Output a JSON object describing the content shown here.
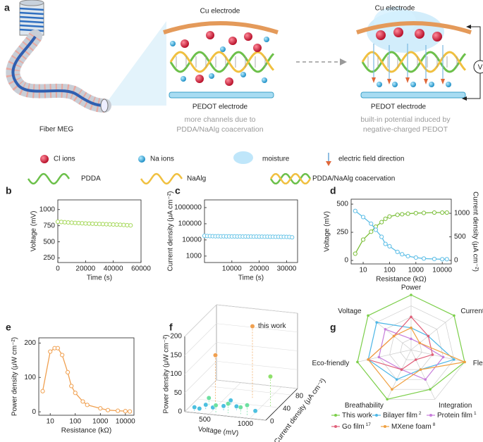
{
  "diagram": {
    "label": "a",
    "fiber": "Fiber MEG",
    "cu_left": "Cu electrode",
    "cu_right": "Cu electrode",
    "pedot_left": "PEDOT electrode",
    "pedot_right": "PEDOT electrode",
    "note_left": [
      "more channels due to",
      "PDDA/NaAlg coacervation"
    ],
    "note_right": [
      "built-in potential induced by",
      "negative-charged PEDOT"
    ],
    "voltmeter": "V",
    "legend": [
      "Cl ions",
      "Na ions",
      "moisture",
      "electric field direction",
      "PDDA",
      "NaAlg",
      "PDDA/NaAlg coacervation"
    ]
  },
  "chart_data": [
    {
      "panel": "b",
      "type": "line",
      "xlabel": "Time (s)",
      "ylabel": "Voltage (mV)",
      "color": "#a6d85a",
      "x": [
        0,
        2500,
        5000,
        7500,
        10000,
        12500,
        15000,
        17500,
        20000,
        22500,
        25000,
        27500,
        30000,
        32500,
        35000,
        37500,
        40000,
        42500,
        45000,
        47500,
        50000,
        52500
      ],
      "values": [
        812,
        808,
        804,
        800,
        797,
        794,
        791,
        788,
        785,
        783,
        781,
        779,
        777,
        775,
        773,
        771,
        769,
        767,
        765,
        762,
        758,
        755
      ],
      "xlim": [
        0,
        60000
      ],
      "xticks": [
        0,
        20000,
        40000,
        60000
      ],
      "ylim": [
        180,
        1150
      ],
      "yticks": [
        250,
        500,
        750,
        1000
      ]
    },
    {
      "panel": "c",
      "type": "line",
      "xlabel": "Time (s)",
      "ylabel": "Current density (μA cm⁻²)",
      "color": "#6cc6e8",
      "ylog": true,
      "x": [
        0,
        1000,
        2000,
        3000,
        4000,
        5000,
        6000,
        7000,
        8000,
        9000,
        10000,
        11000,
        12000,
        13000,
        14000,
        15000,
        16000,
        17000,
        18000,
        19000,
        20000,
        21000,
        22000,
        23000,
        24000,
        25000,
        26000,
        27000,
        28000,
        29000,
        30000,
        31000,
        32000
      ],
      "values": [
        18000,
        17500,
        17200,
        17000,
        16800,
        16900,
        16600,
        16700,
        16500,
        16600,
        16400,
        16500,
        16300,
        16400,
        16200,
        16300,
        16100,
        16200,
        16000,
        16100,
        15900,
        16000,
        15800,
        15900,
        15700,
        15800,
        15600,
        15700,
        15500,
        15600,
        15400,
        15300,
        14500
      ],
      "xlim": [
        0,
        34000
      ],
      "xticks": [
        10000,
        20000,
        30000
      ],
      "ylim": [
        400,
        3000000
      ],
      "yticks": [
        1000,
        10000,
        100000,
        1000000
      ]
    },
    {
      "panel": "d",
      "type": "line",
      "xlabel": "Resistance (kΩ)",
      "ylabel": "Voltage (mV)",
      "y2label": "Current density (μA cm⁻²)",
      "xlog": true,
      "x": [
        5,
        10,
        20,
        30,
        50,
        70,
        100,
        200,
        300,
        500,
        1000,
        2000,
        5000,
        10000,
        15000
      ],
      "series": [
        {
          "color": "#7cbf3a",
          "values": [
            60,
            185,
            255,
            300,
            340,
            370,
            390,
            405,
            410,
            415,
            420,
            422,
            425,
            425,
            425
          ]
        },
        {
          "color": "#5bbde6",
          "axis": "y2",
          "values": [
            1050,
            920,
            780,
            650,
            500,
            350,
            300,
            180,
            130,
            90,
            60,
            40,
            30,
            25,
            25
          ]
        }
      ],
      "xlim": [
        3.5,
        22000
      ],
      "xticks": [
        10,
        100,
        1000,
        10000
      ],
      "ylim": [
        -31,
        544
      ],
      "yticks": [
        0,
        250,
        500
      ],
      "y2lim": [
        -75,
        1300
      ],
      "y2ticks": [
        0,
        500,
        1000
      ]
    },
    {
      "panel": "e",
      "type": "line",
      "xlabel": "Resistance (kΩ)",
      "ylabel": "Power density (μW cm⁻²)",
      "color": "#f0a050",
      "xlog": true,
      "x": [
        5,
        10,
        15,
        20,
        30,
        50,
        70,
        100,
        200,
        300,
        1000,
        2000,
        5000,
        10000,
        15000
      ],
      "values": [
        60,
        175,
        185,
        185,
        165,
        115,
        75,
        55,
        30,
        20,
        10,
        5,
        3,
        2,
        1
      ],
      "xlim": [
        3.5,
        22000
      ],
      "xticks": [
        10,
        100,
        1000,
        10000
      ],
      "ylim": [
        -10,
        215
      ],
      "yticks": [
        0,
        100,
        200
      ]
    },
    {
      "panel": "f",
      "type": "scatter3d",
      "xlabel": "Voltage (mV)",
      "ylabel": "Current density (μA cm⁻²)",
      "zlabel": "Power density (μW cm⁻²)",
      "annotation": "this work",
      "x": [
        800,
        500,
        1100,
        300,
        350,
        420,
        500,
        560,
        620,
        700,
        760,
        850,
        950,
        1000,
        400,
        650
      ],
      "y": [
        60,
        20,
        40,
        5,
        8,
        10,
        12,
        6,
        15,
        9,
        20,
        10,
        5,
        18,
        25,
        30
      ],
      "z": [
        190,
        140,
        80,
        10,
        5,
        15,
        8,
        20,
        12,
        25,
        10,
        18,
        30,
        5,
        20,
        15
      ],
      "colors": [
        "#f0a050",
        "#f0a050",
        "#8ee06a",
        "#4cc0e0",
        "#4cc0e0",
        "#4cc0e0",
        "#4cc0e0",
        "#6de0a0",
        "#4cc0e0",
        "#6de0a0",
        "#4cc0e0",
        "#6de0a0",
        "#6de0a0",
        "#4cc0e0",
        "#6de0a0",
        "#4cc0e0"
      ],
      "xlim": [
        200,
        1200
      ],
      "xticks": [
        500,
        1000
      ],
      "ylim": [
        0,
        100
      ],
      "yticks": [
        0,
        40,
        80
      ],
      "zlim": [
        0,
        200
      ],
      "zticks": [
        0,
        50,
        100,
        150,
        200
      ]
    },
    {
      "panel": "g",
      "type": "radar",
      "axes": [
        "Power",
        "Current",
        "Flexibility",
        "Integration",
        "Breathability",
        "Eco-friendly",
        "Voltage"
      ],
      "rlim": [
        0,
        5
      ],
      "rticks": [
        1,
        2,
        3,
        4,
        5
      ],
      "series": [
        {
          "name": "This work",
          "color": "#7ccf4a",
          "values": [
            5,
            5,
            5,
            4,
            5,
            5,
            5
          ]
        },
        {
          "name": "Bilayer film",
          "ref": "2",
          "color": "#4cb6e6",
          "values": [
            2,
            2,
            4,
            2,
            3,
            4,
            4
          ]
        },
        {
          "name": "Protein film",
          "ref": "1",
          "color": "#c77ddb",
          "values": [
            1,
            1,
            3,
            3,
            2,
            3,
            3
          ]
        },
        {
          "name": "Go film",
          "ref": "17",
          "color": "#e0607a",
          "values": [
            3,
            2,
            2,
            1,
            2,
            4,
            2
          ]
        },
        {
          "name": "MXene foam",
          "ref": "8",
          "color": "#f0a040",
          "values": [
            2,
            1,
            5,
            2,
            4,
            4,
            2
          ]
        }
      ]
    }
  ]
}
